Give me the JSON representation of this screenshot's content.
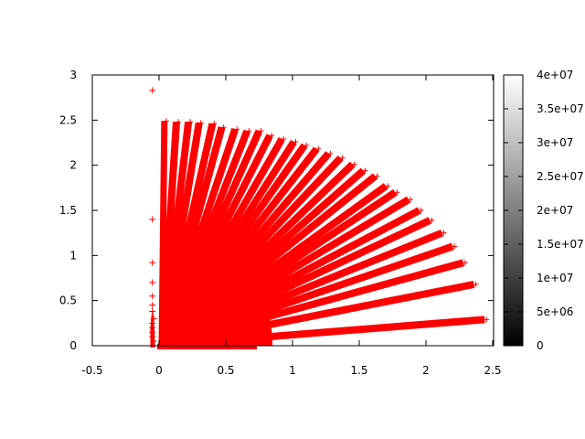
{
  "chart_data": {
    "type": "scatter",
    "title": "",
    "xlabel": "",
    "ylabel": "",
    "xlim": [
      -0.5,
      2.5
    ],
    "ylim": [
      0,
      3
    ],
    "grid": false,
    "marker": "+",
    "marker_color": "#ff0000",
    "x_ticks": [
      "-0.5",
      "0",
      "0.5",
      "1",
      "1.5",
      "2",
      "2.5"
    ],
    "x_tick_values": [
      -0.5,
      0,
      0.5,
      1,
      1.5,
      2,
      2.5
    ],
    "y_ticks": [
      "0",
      "0.5",
      "1",
      "1.5",
      "2",
      "2.5",
      "3"
    ],
    "y_tick_values": [
      0,
      0.5,
      1,
      1.5,
      2,
      2.5,
      3
    ],
    "dense_core": {
      "x_max": 0.85,
      "y_max": 1.4
    },
    "rays": [
      [
        0.04,
        2.49
      ],
      [
        0.13,
        2.48
      ],
      [
        0.22,
        2.48
      ],
      [
        0.3,
        2.47
      ],
      [
        0.4,
        2.46
      ],
      [
        0.47,
        2.42
      ],
      [
        0.57,
        2.4
      ],
      [
        0.66,
        2.38
      ],
      [
        0.75,
        2.38
      ],
      [
        0.83,
        2.33
      ],
      [
        0.92,
        2.29
      ],
      [
        1.01,
        2.26
      ],
      [
        1.09,
        2.22
      ],
      [
        1.18,
        2.18
      ],
      [
        1.27,
        2.13
      ],
      [
        1.36,
        2.08
      ],
      [
        1.45,
        2.01
      ],
      [
        1.53,
        1.94
      ],
      [
        1.62,
        1.88
      ],
      [
        1.7,
        1.77
      ],
      [
        1.77,
        1.7
      ],
      [
        1.87,
        1.62
      ],
      [
        1.95,
        1.5
      ],
      [
        2.03,
        1.39
      ],
      [
        2.12,
        1.25
      ],
      [
        2.2,
        1.1
      ],
      [
        2.28,
        0.92
      ],
      [
        2.36,
        0.68
      ],
      [
        2.44,
        0.29
      ]
    ],
    "outliers": [
      [
        -0.05,
        2.83
      ],
      [
        -0.05,
        1.4
      ],
      [
        -0.05,
        0.92
      ],
      [
        -0.05,
        0.7
      ],
      [
        -0.05,
        0.55
      ],
      [
        -0.05,
        0.45
      ],
      [
        -0.05,
        0.38
      ],
      [
        -0.04,
        0.3
      ],
      [
        -0.05,
        0.25
      ],
      [
        -0.05,
        0.2
      ],
      [
        -0.05,
        0.15
      ],
      [
        -0.05,
        0.1
      ],
      [
        -0.04,
        0.05
      ]
    ],
    "colorbar": {
      "range": [
        0,
        40000000
      ],
      "palette": "gray",
      "low_color": "#000000",
      "high_color": "#ffffff",
      "tick_labels": [
        "0",
        "5e+06",
        "1e+07",
        "1.5e+07",
        "2e+07",
        "2.5e+07",
        "3e+07",
        "3.5e+07",
        "4e+07"
      ],
      "tick_values": [
        0,
        5000000,
        10000000,
        15000000,
        20000000,
        25000000,
        30000000,
        35000000,
        40000000
      ]
    }
  }
}
